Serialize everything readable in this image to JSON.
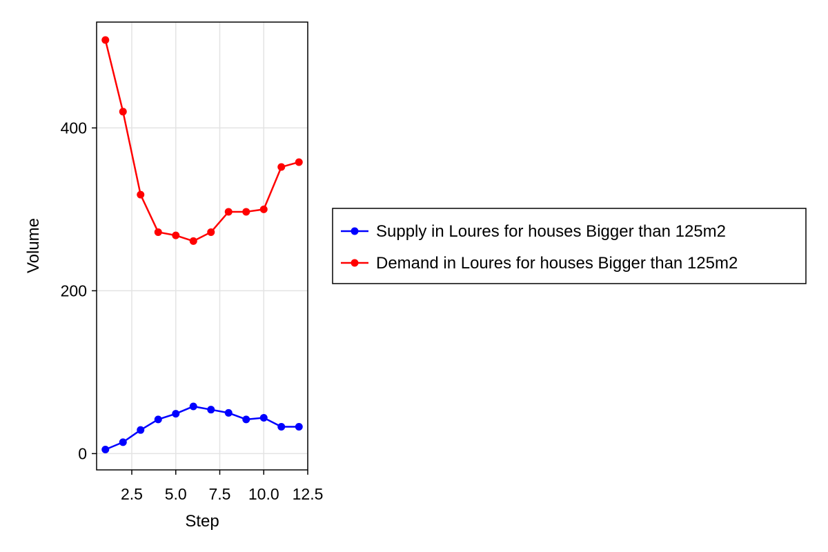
{
  "chart_data": {
    "type": "line",
    "xlabel": "Step",
    "ylabel": "Volume",
    "xlim": [
      0.5,
      12.5
    ],
    "ylim": [
      -20,
      530
    ],
    "x_ticks": [
      2.5,
      5.0,
      7.5,
      10.0,
      12.5
    ],
    "x_tick_labels": [
      "2.5",
      "5.0",
      "7.5",
      "10.0",
      "12.5"
    ],
    "y_ticks": [
      0,
      200,
      400
    ],
    "y_tick_labels": [
      "0",
      "200",
      "400"
    ],
    "grid": true,
    "legend_position": "right",
    "x": [
      1,
      2,
      3,
      4,
      5,
      6,
      7,
      8,
      9,
      10,
      11,
      12
    ],
    "series": [
      {
        "name": "Supply in Loures for houses Bigger than 125m2",
        "color": "#0000ff",
        "values": [
          5,
          14,
          29,
          42,
          49,
          58,
          54,
          50,
          42,
          44,
          33,
          33
        ]
      },
      {
        "name": "Demand in Loures for houses Bigger than 125m2",
        "color": "#ff0000",
        "values": [
          508,
          420,
          318,
          272,
          268,
          261,
          272,
          297,
          297,
          300,
          352,
          358
        ]
      }
    ]
  }
}
